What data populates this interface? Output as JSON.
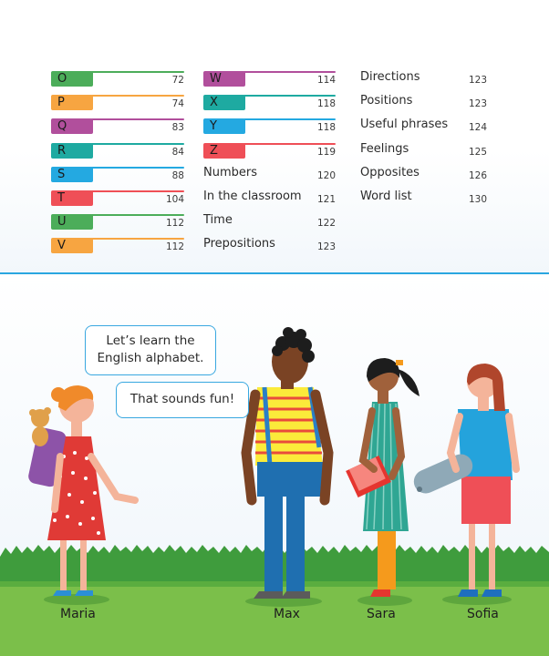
{
  "toc": {
    "col1": [
      {
        "letter": "O",
        "page": "72",
        "color": "#4cad5a"
      },
      {
        "letter": "P",
        "page": "74",
        "color": "#f7a541"
      },
      {
        "letter": "Q",
        "page": "83",
        "color": "#b14f9c"
      },
      {
        "letter": "R",
        "page": "84",
        "color": "#1eaaa1"
      },
      {
        "letter": "S",
        "page": "88",
        "color": "#24a9e1"
      },
      {
        "letter": "T",
        "page": "104",
        "color": "#ef4f57"
      },
      {
        "letter": "U",
        "page": "112",
        "color": "#4cad5a"
      },
      {
        "letter": "V",
        "page": "112",
        "color": "#f7a541"
      }
    ],
    "col2_letters": [
      {
        "letter": "W",
        "page": "114",
        "color": "#b14f9c"
      },
      {
        "letter": "X",
        "page": "118",
        "color": "#1eaaa1"
      },
      {
        "letter": "Y",
        "page": "118",
        "color": "#24a9e1"
      },
      {
        "letter": "Z",
        "page": "119",
        "color": "#ef4f57"
      }
    ],
    "col2_topics": [
      {
        "label": "Numbers",
        "page": "120"
      },
      {
        "label": "In the classroom",
        "page": "121"
      },
      {
        "label": "Time",
        "page": "122"
      },
      {
        "label": "Prepositions",
        "page": "123"
      }
    ],
    "col3": [
      {
        "label": "Directions",
        "page": "123"
      },
      {
        "label": "Positions",
        "page": "123"
      },
      {
        "label": "Useful phrases",
        "page": "124"
      },
      {
        "label": "Feelings",
        "page": "125"
      },
      {
        "label": "Opposites",
        "page": "126"
      },
      {
        "label": "Word list",
        "page": "130"
      }
    ]
  },
  "bubbles": {
    "first_line1": "Let’s learn the",
    "first_line2": "English alphabet.",
    "second": "That sounds fun!"
  },
  "characters": [
    "Maria",
    "Max",
    "Sara",
    "Sofia"
  ]
}
